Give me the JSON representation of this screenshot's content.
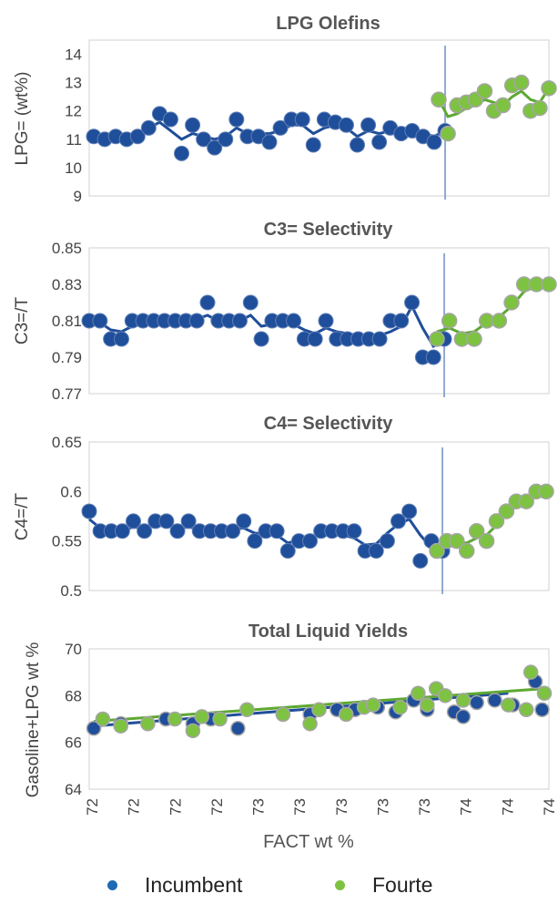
{
  "colors": {
    "incumbent_marker": "#1f4e9a",
    "incumbent_line": "#1f4e9a",
    "fourte_marker": "#7ec242",
    "fourte_line": "#5ea832",
    "frame": "#d0d0d0",
    "divider": "#6f8fc4",
    "legend_incumbent": "#1d6ab5",
    "legend_fourte": "#7ec242"
  },
  "legend": {
    "incumbent": "Incumbent",
    "fourte": "Fourte",
    "position": "bottom"
  },
  "x_axis": {
    "label": "FACT wt %",
    "tick_labels": [
      "72",
      "72",
      "72",
      "72",
      "73",
      "73",
      "73",
      "73",
      "73",
      "74",
      "74",
      "74"
    ]
  },
  "chart_data": [
    {
      "type": "scatter",
      "title": "LPG Olefins",
      "xlabel": "",
      "ylabel": "LPG= (wt%)",
      "ylim": [
        9,
        14.5
      ],
      "yticks": [
        "14",
        "13",
        "12",
        "11",
        "10",
        "9"
      ],
      "grid": false,
      "divider": true,
      "series": [
        {
          "name": "Incumbent",
          "values": [
            11.1,
            11.0,
            11.1,
            11.0,
            11.1,
            11.4,
            11.9,
            11.7,
            10.5,
            11.5,
            11.0,
            10.7,
            11.0,
            11.7,
            11.1,
            11.1,
            10.9,
            11.4,
            11.7,
            11.7,
            10.8,
            11.7,
            11.6,
            11.5,
            10.8,
            11.5,
            10.9,
            11.4,
            11.2,
            11.3,
            11.1,
            10.9,
            11.3
          ],
          "trend": [
            11.1,
            11.1,
            11.0,
            11.1,
            11.2,
            11.4,
            11.6,
            11.3,
            11.0,
            11.2,
            11.1,
            11.0,
            11.1,
            11.4,
            11.2,
            11.2,
            11.2,
            11.3,
            11.5,
            11.5,
            11.2,
            11.4,
            11.5,
            11.4,
            11.1,
            11.3,
            11.2,
            11.3,
            11.3,
            11.2,
            11.2,
            11.1,
            11.3
          ]
        },
        {
          "name": "Fourte",
          "values": [
            12.4,
            11.2,
            12.2,
            12.3,
            12.4,
            12.7,
            12.0,
            12.2,
            12.9,
            13.0,
            12.0,
            12.1,
            12.8
          ],
          "trend": [
            12.4,
            11.8,
            11.9,
            12.1,
            12.2,
            12.4,
            12.3,
            12.2,
            12.5,
            12.7,
            12.4,
            12.3,
            12.8
          ]
        }
      ]
    },
    {
      "type": "scatter",
      "title": "C3= Selectivity",
      "xlabel": "",
      "ylabel": "C3=/T",
      "ylim": [
        0.77,
        0.85
      ],
      "yticks": [
        "0.85",
        "0.83",
        "0.81",
        "0.79",
        "0.77"
      ],
      "grid": false,
      "divider": true,
      "series": [
        {
          "name": "Incumbent",
          "values": [
            0.81,
            0.81,
            0.8,
            0.8,
            0.81,
            0.81,
            0.81,
            0.81,
            0.81,
            0.81,
            0.81,
            0.82,
            0.81,
            0.81,
            0.81,
            0.82,
            0.8,
            0.81,
            0.81,
            0.81,
            0.8,
            0.8,
            0.81,
            0.8,
            0.8,
            0.8,
            0.8,
            0.8,
            0.81,
            0.81,
            0.82,
            0.79,
            0.79,
            0.8
          ],
          "trend": [
            0.813,
            0.809,
            0.805,
            0.804,
            0.807,
            0.808,
            0.809,
            0.81,
            0.81,
            0.81,
            0.811,
            0.813,
            0.81,
            0.81,
            0.81,
            0.813,
            0.807,
            0.808,
            0.809,
            0.808,
            0.805,
            0.803,
            0.806,
            0.804,
            0.803,
            0.802,
            0.802,
            0.802,
            0.804,
            0.807,
            0.818,
            0.806,
            0.796,
            0.799
          ]
        },
        {
          "name": "Fourte",
          "values": [
            0.8,
            0.81,
            0.8,
            0.8,
            0.81,
            0.81,
            0.82,
            0.83,
            0.83,
            0.83
          ],
          "trend": [
            0.804,
            0.806,
            0.803,
            0.804,
            0.809,
            0.812,
            0.818,
            0.826,
            0.829,
            0.829
          ]
        }
      ]
    },
    {
      "type": "scatter",
      "title": "C4= Selectivity",
      "xlabel": "",
      "ylabel": "C4=/T",
      "ylim": [
        0.5,
        0.65
      ],
      "yticks": [
        "0.65",
        "0.6",
        "0.55",
        "0.5"
      ],
      "grid": false,
      "divider": true,
      "series": [
        {
          "name": "Incumbent",
          "values": [
            0.58,
            0.56,
            0.56,
            0.56,
            0.57,
            0.56,
            0.57,
            0.57,
            0.56,
            0.57,
            0.56,
            0.56,
            0.56,
            0.56,
            0.57,
            0.55,
            0.56,
            0.56,
            0.54,
            0.55,
            0.55,
            0.56,
            0.56,
            0.56,
            0.56,
            0.54,
            0.54,
            0.55,
            0.57,
            0.58,
            0.53,
            0.55,
            0.54
          ],
          "trend": [
            0.572,
            0.563,
            0.56,
            0.561,
            0.564,
            0.563,
            0.566,
            0.565,
            0.563,
            0.564,
            0.562,
            0.561,
            0.561,
            0.562,
            0.563,
            0.558,
            0.557,
            0.556,
            0.548,
            0.551,
            0.553,
            0.557,
            0.558,
            0.556,
            0.553,
            0.546,
            0.547,
            0.558,
            0.567,
            0.572,
            0.556,
            0.543,
            0.541
          ]
        },
        {
          "name": "Fourte",
          "values": [
            0.54,
            0.55,
            0.55,
            0.54,
            0.56,
            0.55,
            0.57,
            0.58,
            0.59,
            0.59,
            0.6,
            0.6
          ],
          "trend": [
            0.543,
            0.547,
            0.549,
            0.548,
            0.553,
            0.556,
            0.566,
            0.577,
            0.585,
            0.589,
            0.595,
            0.6
          ]
        }
      ]
    },
    {
      "type": "scatter",
      "title": "Total Liquid Yields",
      "xlabel": "FACT wt %",
      "ylabel": "Gasoline+LPG wt %",
      "ylim": [
        64,
        70
      ],
      "yticks": [
        "70",
        "68",
        "66",
        "64"
      ],
      "grid": false,
      "divider": false,
      "series": [
        {
          "name": "Incumbent",
          "values": [
            66.6,
            66.8,
            66.8,
            67.0,
            66.8,
            67.0,
            66.6,
            67.2,
            67.2,
            67.4,
            67.4,
            67.5,
            67.3,
            67.8,
            67.4,
            67.3,
            67.1,
            67.7,
            67.8,
            67.6,
            68.6,
            67.4
          ],
          "x": [
            0.0,
            0.06,
            0.12,
            0.16,
            0.22,
            0.26,
            0.32,
            0.42,
            0.48,
            0.54,
            0.58,
            0.63,
            0.67,
            0.71,
            0.74,
            0.8,
            0.82,
            0.85,
            0.89,
            0.93,
            0.98,
            0.995
          ],
          "trend_start": 66.7,
          "trend_end": 68.1
        },
        {
          "name": "Fourte",
          "values": [
            67.0,
            66.7,
            66.8,
            67.0,
            66.5,
            67.1,
            67.0,
            67.4,
            67.2,
            66.8,
            67.4,
            67.2,
            67.5,
            67.6,
            67.5,
            68.1,
            67.6,
            68.3,
            68.0,
            67.8,
            67.6,
            67.4,
            69.0,
            68.1
          ],
          "x": [
            0.02,
            0.06,
            0.12,
            0.18,
            0.22,
            0.24,
            0.28,
            0.34,
            0.42,
            0.48,
            0.5,
            0.56,
            0.6,
            0.62,
            0.68,
            0.72,
            0.74,
            0.76,
            0.78,
            0.82,
            0.92,
            0.96,
            0.97,
            1.0
          ],
          "trend_start": 66.9,
          "trend_end": 68.3
        }
      ]
    }
  ]
}
